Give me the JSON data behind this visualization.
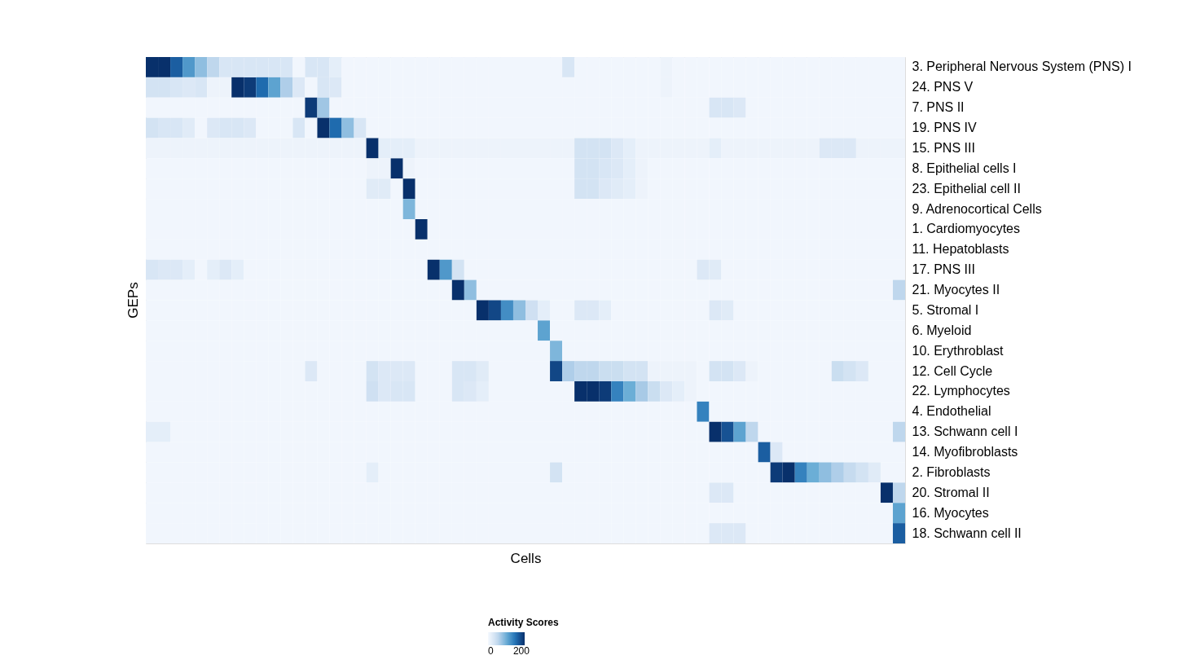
{
  "chart_data": {
    "type": "heatmap",
    "xlabel": "Cells",
    "ylabel": "GEPs",
    "legend_title": "Activity Scores",
    "clim": [
      0,
      220
    ],
    "cticks": [
      0,
      200
    ],
    "categories": [
      null,
      null,
      null,
      null,
      null,
      null,
      null,
      null,
      null,
      null,
      null,
      null,
      null,
      null,
      null,
      null,
      null,
      null,
      null,
      null,
      null,
      null,
      null,
      null,
      null,
      null,
      null,
      null,
      null,
      null,
      null,
      null,
      null,
      null,
      null,
      null,
      null,
      null,
      null,
      null,
      null,
      null,
      null,
      null,
      null,
      null,
      null,
      null,
      null,
      null,
      null,
      null,
      null,
      null,
      null,
      null,
      null,
      null,
      null,
      null,
      null,
      null
    ],
    "y_categories": [
      "3. Peripheral Nervous System (PNS) I",
      "24. PNS V",
      "7. PNS II",
      "19. PNS IV",
      "15. PNS III",
      "8. Epithelial cells I",
      "23. Epithelial cell II",
      "9. Adrenocortical Cells",
      "1. Cardiomyocytes",
      "11. Hepatoblasts",
      "17. PNS III",
      "21. Myocytes II",
      "5. Stromal I",
      "6. Myeloid",
      "10. Erythroblast",
      "12. Cell Cycle",
      "22. Lymphocytes",
      "4. Endothelial",
      "13. Schwann cell I",
      "14. Myofibroblasts",
      "2. Fibroblasts",
      "20. Stromal II",
      "16. Myocytes",
      "18. Schwann cell II"
    ],
    "cells": [
      [
        220,
        220,
        180,
        130,
        90,
        60,
        35,
        35,
        35,
        35,
        35,
        35,
        5,
        35,
        35,
        20,
        5,
        5,
        5,
        5,
        5,
        5,
        5,
        5,
        5,
        5,
        5,
        5,
        5,
        5,
        5,
        5,
        5,
        5,
        35,
        5,
        5,
        5,
        5,
        5,
        5,
        5,
        10,
        5,
        5,
        5,
        5,
        5,
        5,
        5,
        5,
        5,
        5,
        5,
        5,
        5,
        5,
        5,
        5,
        5,
        5,
        5
      ],
      [
        40,
        40,
        35,
        30,
        35,
        10,
        10,
        220,
        210,
        170,
        120,
        70,
        30,
        5,
        35,
        30,
        5,
        5,
        5,
        5,
        5,
        5,
        5,
        5,
        5,
        5,
        5,
        5,
        5,
        5,
        5,
        5,
        5,
        5,
        5,
        5,
        5,
        5,
        5,
        5,
        5,
        5,
        10,
        5,
        5,
        5,
        5,
        5,
        5,
        5,
        5,
        5,
        5,
        5,
        5,
        5,
        5,
        5,
        5,
        5,
        5,
        5
      ],
      [
        5,
        5,
        5,
        5,
        5,
        5,
        5,
        5,
        5,
        5,
        5,
        5,
        5,
        210,
        80,
        5,
        5,
        5,
        5,
        5,
        5,
        5,
        5,
        5,
        5,
        5,
        5,
        5,
        5,
        5,
        5,
        5,
        5,
        5,
        5,
        5,
        5,
        5,
        5,
        5,
        5,
        5,
        5,
        5,
        5,
        5,
        35,
        35,
        30,
        5,
        5,
        5,
        5,
        5,
        5,
        5,
        5,
        5,
        5,
        5,
        5,
        5
      ],
      [
        40,
        35,
        35,
        25,
        5,
        30,
        35,
        35,
        30,
        5,
        5,
        5,
        35,
        5,
        220,
        170,
        90,
        35,
        5,
        5,
        5,
        5,
        5,
        5,
        5,
        5,
        5,
        5,
        5,
        5,
        5,
        5,
        5,
        5,
        5,
        5,
        5,
        5,
        5,
        5,
        5,
        5,
        5,
        5,
        5,
        5,
        5,
        5,
        5,
        5,
        5,
        5,
        5,
        5,
        5,
        5,
        5,
        5,
        5,
        5,
        5,
        5
      ],
      [
        10,
        10,
        10,
        10,
        10,
        10,
        10,
        10,
        10,
        10,
        10,
        10,
        10,
        10,
        10,
        10,
        10,
        10,
        220,
        20,
        20,
        20,
        10,
        10,
        10,
        10,
        10,
        10,
        10,
        10,
        10,
        10,
        10,
        10,
        10,
        40,
        40,
        40,
        30,
        20,
        10,
        10,
        10,
        10,
        10,
        10,
        20,
        10,
        10,
        10,
        10,
        10,
        10,
        10,
        10,
        30,
        30,
        30,
        10,
        10,
        10,
        10
      ],
      [
        5,
        5,
        5,
        5,
        5,
        5,
        5,
        5,
        5,
        5,
        5,
        5,
        5,
        5,
        5,
        5,
        5,
        5,
        10,
        10,
        220,
        10,
        5,
        5,
        5,
        5,
        5,
        5,
        5,
        5,
        5,
        5,
        5,
        5,
        5,
        40,
        40,
        35,
        30,
        20,
        10,
        5,
        5,
        5,
        5,
        5,
        5,
        5,
        5,
        5,
        5,
        5,
        5,
        5,
        5,
        5,
        5,
        5,
        5,
        5,
        5,
        5
      ],
      [
        5,
        5,
        5,
        5,
        5,
        5,
        5,
        5,
        5,
        5,
        5,
        5,
        5,
        5,
        5,
        5,
        5,
        5,
        25,
        25,
        5,
        220,
        5,
        5,
        5,
        5,
        5,
        5,
        5,
        5,
        5,
        5,
        5,
        5,
        5,
        40,
        40,
        30,
        25,
        20,
        10,
        5,
        5,
        5,
        5,
        5,
        5,
        5,
        5,
        5,
        5,
        5,
        5,
        5,
        5,
        5,
        5,
        5,
        5,
        5,
        5,
        5
      ],
      [
        5,
        5,
        5,
        5,
        5,
        5,
        5,
        5,
        5,
        5,
        5,
        5,
        5,
        5,
        5,
        5,
        5,
        5,
        5,
        5,
        5,
        100,
        5,
        5,
        5,
        5,
        5,
        5,
        5,
        5,
        5,
        5,
        5,
        5,
        5,
        5,
        5,
        5,
        5,
        5,
        5,
        5,
        5,
        5,
        5,
        5,
        5,
        5,
        5,
        5,
        5,
        5,
        5,
        5,
        5,
        5,
        5,
        5,
        5,
        5,
        5,
        5
      ],
      [
        5,
        5,
        5,
        5,
        5,
        5,
        5,
        5,
        5,
        5,
        5,
        5,
        5,
        5,
        5,
        5,
        5,
        5,
        5,
        5,
        5,
        5,
        220,
        5,
        5,
        5,
        5,
        5,
        5,
        5,
        5,
        5,
        5,
        5,
        5,
        5,
        5,
        5,
        5,
        5,
        5,
        5,
        5,
        5,
        5,
        5,
        5,
        5,
        5,
        5,
        5,
        5,
        5,
        5,
        5,
        5,
        5,
        5,
        5,
        5,
        5,
        5
      ],
      [
        5,
        5,
        5,
        5,
        5,
        5,
        5,
        5,
        5,
        5,
        5,
        5,
        5,
        5,
        5,
        5,
        5,
        5,
        5,
        5,
        5,
        5,
        5,
        5,
        5,
        5,
        5,
        5,
        5,
        5,
        5,
        5,
        5,
        5,
        5,
        5,
        5,
        5,
        5,
        5,
        5,
        5,
        5,
        5,
        5,
        5,
        5,
        5,
        5,
        5,
        5,
        5,
        5,
        5,
        5,
        5,
        5,
        5,
        5,
        5,
        5,
        5
      ],
      [
        35,
        30,
        30,
        20,
        5,
        20,
        30,
        20,
        5,
        5,
        5,
        5,
        5,
        5,
        5,
        5,
        5,
        5,
        5,
        5,
        5,
        5,
        5,
        220,
        130,
        40,
        5,
        5,
        5,
        5,
        5,
        5,
        5,
        5,
        5,
        5,
        5,
        5,
        5,
        5,
        5,
        5,
        5,
        5,
        5,
        30,
        25,
        5,
        5,
        5,
        5,
        5,
        5,
        5,
        5,
        5,
        5,
        5,
        5,
        5,
        5,
        5
      ],
      [
        5,
        5,
        5,
        5,
        5,
        5,
        5,
        5,
        5,
        5,
        5,
        5,
        5,
        5,
        5,
        5,
        5,
        5,
        5,
        5,
        5,
        5,
        5,
        5,
        5,
        220,
        90,
        5,
        5,
        5,
        5,
        5,
        5,
        5,
        5,
        5,
        5,
        5,
        5,
        5,
        5,
        5,
        5,
        5,
        5,
        5,
        5,
        5,
        5,
        5,
        5,
        5,
        5,
        5,
        5,
        5,
        5,
        5,
        5,
        5,
        5,
        60
      ],
      [
        5,
        5,
        5,
        5,
        5,
        5,
        5,
        5,
        5,
        5,
        5,
        5,
        5,
        5,
        5,
        5,
        5,
        5,
        5,
        5,
        5,
        5,
        5,
        5,
        5,
        5,
        5,
        220,
        200,
        140,
        90,
        45,
        20,
        5,
        5,
        30,
        30,
        20,
        5,
        5,
        5,
        5,
        5,
        5,
        5,
        5,
        30,
        25,
        5,
        5,
        5,
        5,
        5,
        5,
        5,
        5,
        5,
        5,
        5,
        5,
        5,
        5
      ],
      [
        5,
        5,
        5,
        5,
        5,
        5,
        5,
        5,
        5,
        5,
        5,
        5,
        5,
        5,
        5,
        5,
        5,
        5,
        5,
        5,
        5,
        5,
        5,
        5,
        5,
        5,
        5,
        5,
        5,
        5,
        5,
        5,
        120,
        5,
        5,
        5,
        5,
        5,
        5,
        5,
        5,
        5,
        5,
        5,
        5,
        5,
        5,
        5,
        5,
        5,
        5,
        5,
        5,
        5,
        5,
        5,
        5,
        5,
        5,
        5,
        5,
        5
      ],
      [
        5,
        5,
        5,
        5,
        5,
        5,
        5,
        5,
        5,
        5,
        5,
        5,
        5,
        5,
        5,
        5,
        5,
        5,
        5,
        5,
        5,
        5,
        5,
        5,
        5,
        5,
        5,
        5,
        5,
        5,
        5,
        5,
        5,
        100,
        5,
        5,
        5,
        5,
        5,
        5,
        5,
        5,
        5,
        5,
        5,
        5,
        5,
        5,
        5,
        5,
        5,
        5,
        5,
        5,
        5,
        5,
        5,
        5,
        5,
        5,
        5,
        5
      ],
      [
        5,
        5,
        5,
        5,
        5,
        5,
        5,
        5,
        5,
        5,
        5,
        5,
        5,
        30,
        5,
        5,
        5,
        5,
        40,
        30,
        30,
        30,
        5,
        5,
        5,
        35,
        35,
        25,
        5,
        5,
        5,
        5,
        5,
        200,
        70,
        60,
        60,
        50,
        50,
        40,
        40,
        10,
        10,
        10,
        10,
        5,
        40,
        40,
        30,
        10,
        5,
        5,
        5,
        5,
        5,
        5,
        50,
        40,
        30,
        5,
        5,
        5
      ],
      [
        5,
        5,
        5,
        5,
        5,
        5,
        5,
        5,
        5,
        5,
        5,
        5,
        5,
        5,
        5,
        5,
        5,
        5,
        45,
        30,
        35,
        35,
        5,
        5,
        5,
        35,
        30,
        20,
        5,
        5,
        5,
        5,
        5,
        5,
        5,
        220,
        220,
        210,
        150,
        110,
        75,
        50,
        30,
        20,
        10,
        5,
        5,
        5,
        5,
        5,
        5,
        5,
        5,
        5,
        5,
        5,
        5,
        5,
        5,
        5,
        5,
        5
      ],
      [
        5,
        5,
        5,
        5,
        5,
        5,
        5,
        5,
        5,
        5,
        5,
        5,
        5,
        5,
        5,
        5,
        5,
        5,
        5,
        5,
        5,
        5,
        5,
        5,
        5,
        5,
        5,
        5,
        5,
        5,
        5,
        5,
        5,
        5,
        5,
        5,
        5,
        5,
        5,
        5,
        5,
        5,
        5,
        5,
        5,
        150,
        5,
        5,
        5,
        5,
        5,
        5,
        5,
        5,
        5,
        5,
        5,
        5,
        5,
        5,
        5,
        5
      ],
      [
        20,
        20,
        5,
        5,
        5,
        5,
        5,
        5,
        5,
        5,
        5,
        5,
        5,
        5,
        5,
        5,
        5,
        5,
        5,
        5,
        5,
        5,
        5,
        5,
        5,
        5,
        5,
        5,
        5,
        5,
        5,
        5,
        5,
        5,
        5,
        5,
        5,
        5,
        5,
        5,
        5,
        5,
        5,
        5,
        5,
        5,
        220,
        190,
        120,
        60,
        5,
        5,
        5,
        5,
        5,
        5,
        5,
        5,
        5,
        5,
        5,
        60
      ],
      [
        5,
        5,
        5,
        5,
        5,
        5,
        5,
        5,
        5,
        5,
        5,
        5,
        5,
        5,
        5,
        5,
        5,
        5,
        5,
        5,
        5,
        5,
        5,
        5,
        5,
        5,
        5,
        5,
        5,
        5,
        5,
        5,
        5,
        5,
        5,
        5,
        5,
        5,
        5,
        5,
        5,
        5,
        5,
        5,
        5,
        5,
        5,
        5,
        5,
        5,
        180,
        30,
        5,
        5,
        5,
        5,
        5,
        5,
        5,
        5,
        5,
        5
      ],
      [
        5,
        5,
        5,
        5,
        5,
        5,
        5,
        5,
        5,
        5,
        5,
        5,
        5,
        5,
        5,
        5,
        5,
        5,
        20,
        5,
        5,
        5,
        5,
        5,
        5,
        5,
        5,
        5,
        5,
        5,
        5,
        5,
        5,
        40,
        5,
        5,
        5,
        5,
        5,
        5,
        5,
        5,
        5,
        5,
        5,
        5,
        5,
        5,
        5,
        5,
        5,
        210,
        220,
        150,
        110,
        90,
        70,
        55,
        40,
        25,
        5,
        5
      ],
      [
        5,
        5,
        5,
        5,
        5,
        5,
        5,
        5,
        5,
        5,
        5,
        5,
        5,
        5,
        5,
        5,
        5,
        5,
        5,
        5,
        5,
        5,
        5,
        5,
        5,
        5,
        5,
        5,
        5,
        5,
        5,
        5,
        5,
        5,
        5,
        5,
        5,
        5,
        5,
        5,
        5,
        5,
        5,
        5,
        5,
        5,
        30,
        30,
        5,
        5,
        5,
        5,
        5,
        5,
        5,
        5,
        5,
        5,
        5,
        5,
        220,
        60
      ],
      [
        5,
        5,
        5,
        5,
        5,
        5,
        5,
        5,
        5,
        5,
        5,
        5,
        5,
        5,
        5,
        5,
        5,
        5,
        5,
        5,
        5,
        5,
        5,
        5,
        5,
        5,
        5,
        5,
        5,
        5,
        5,
        5,
        5,
        5,
        5,
        5,
        5,
        5,
        5,
        5,
        5,
        5,
        5,
        5,
        5,
        5,
        5,
        5,
        5,
        5,
        5,
        5,
        5,
        5,
        5,
        5,
        5,
        5,
        5,
        5,
        5,
        120
      ],
      [
        5,
        5,
        5,
        5,
        5,
        5,
        5,
        5,
        5,
        5,
        5,
        5,
        5,
        5,
        5,
        5,
        5,
        5,
        5,
        5,
        5,
        5,
        5,
        5,
        5,
        5,
        5,
        5,
        5,
        5,
        5,
        5,
        5,
        5,
        5,
        5,
        5,
        5,
        5,
        5,
        5,
        5,
        5,
        5,
        5,
        5,
        30,
        30,
        30,
        5,
        5,
        5,
        5,
        5,
        5,
        5,
        5,
        5,
        5,
        5,
        5,
        180
      ]
    ]
  }
}
